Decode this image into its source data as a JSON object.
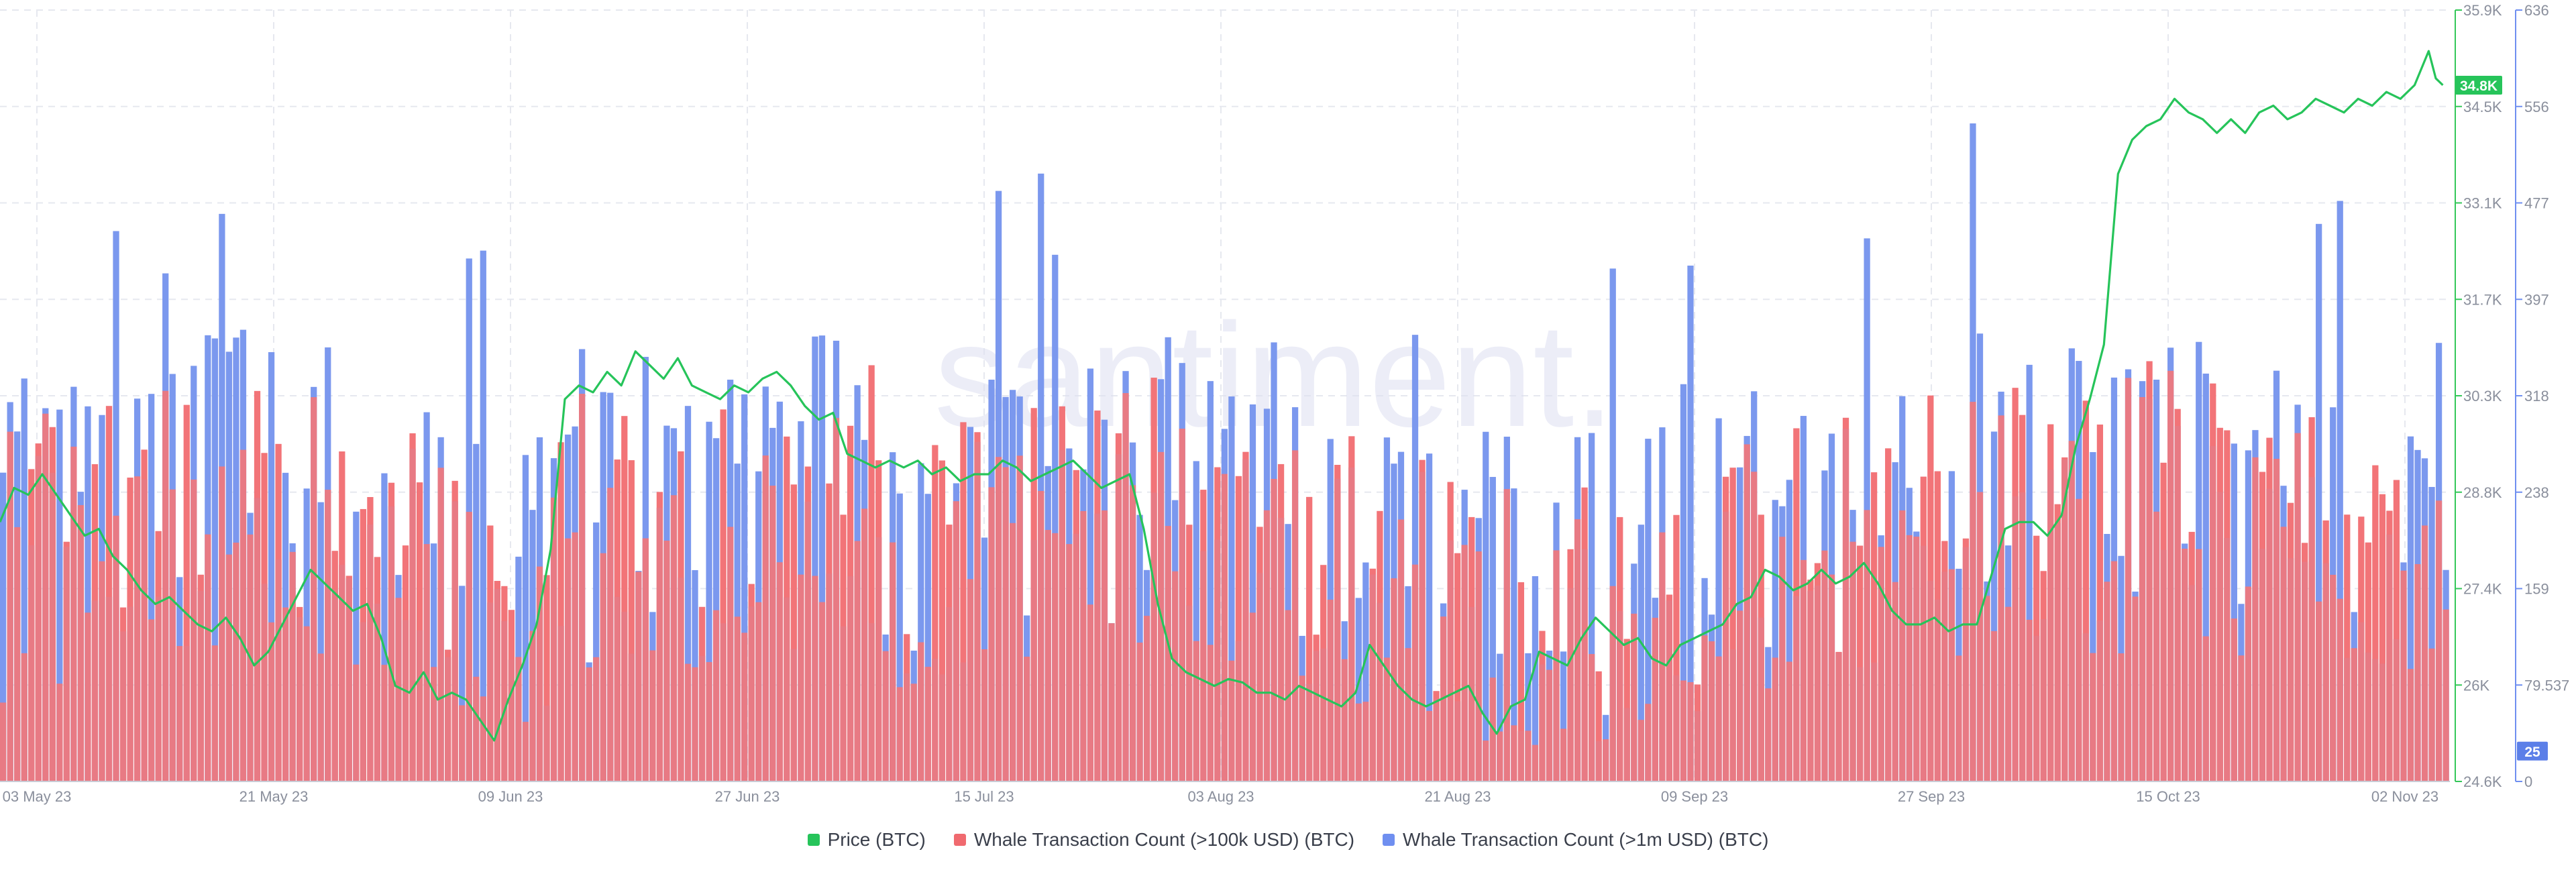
{
  "watermark": "santiment.",
  "chart_data": {
    "type": "bar",
    "x_ticks": [
      "03 May 23",
      "21 May 23",
      "09 Jun 23",
      "27 Jun 23",
      "15 Jul 23",
      "03 Aug 23",
      "21 Aug 23",
      "09 Sep 23",
      "27 Sep 23",
      "15 Oct 23",
      "02 Nov 23"
    ],
    "y_price_ticks": [
      "24.6K",
      "26K",
      "27.4K",
      "28.8K",
      "30.3K",
      "31.7K",
      "33.1K",
      "34.5K",
      "35.9K"
    ],
    "y_count_ticks": [
      "0",
      "79.537",
      "159",
      "238",
      "318",
      "397",
      "477",
      "556",
      "636"
    ],
    "price_ylim": [
      24600,
      35900
    ],
    "count_ylim": [
      0,
      636
    ],
    "last_price_label": "34.8K",
    "last_count_label": "25",
    "grid": true,
    "legend_position": "bottom-center",
    "series": [
      {
        "name": "Price (BTC)",
        "color": "#26c45a",
        "type": "line",
        "points": [
          [
            0,
            28400
          ],
          [
            2,
            28900
          ],
          [
            4,
            28800
          ],
          [
            6,
            29100
          ],
          [
            8,
            28800
          ],
          [
            10,
            28500
          ],
          [
            12,
            28200
          ],
          [
            14,
            28300
          ],
          [
            16,
            27900
          ],
          [
            18,
            27700
          ],
          [
            20,
            27400
          ],
          [
            22,
            27200
          ],
          [
            24,
            27300
          ],
          [
            26,
            27100
          ],
          [
            28,
            26900
          ],
          [
            30,
            26800
          ],
          [
            32,
            27000
          ],
          [
            34,
            26700
          ],
          [
            36,
            26300
          ],
          [
            38,
            26500
          ],
          [
            40,
            26900
          ],
          [
            42,
            27300
          ],
          [
            44,
            27700
          ],
          [
            46,
            27500
          ],
          [
            48,
            27300
          ],
          [
            50,
            27100
          ],
          [
            52,
            27200
          ],
          [
            54,
            26700
          ],
          [
            56,
            26000
          ],
          [
            58,
            25900
          ],
          [
            60,
            26200
          ],
          [
            62,
            25800
          ],
          [
            64,
            25900
          ],
          [
            66,
            25800
          ],
          [
            68,
            25500
          ],
          [
            70,
            25200
          ],
          [
            72,
            25800
          ],
          [
            74,
            26300
          ],
          [
            76,
            26900
          ],
          [
            78,
            28000
          ],
          [
            80,
            30200
          ],
          [
            82,
            30400
          ],
          [
            84,
            30300
          ],
          [
            86,
            30600
          ],
          [
            88,
            30400
          ],
          [
            90,
            30900
          ],
          [
            92,
            30700
          ],
          [
            94,
            30500
          ],
          [
            96,
            30800
          ],
          [
            98,
            30400
          ],
          [
            100,
            30300
          ],
          [
            102,
            30200
          ],
          [
            104,
            30400
          ],
          [
            106,
            30300
          ],
          [
            108,
            30500
          ],
          [
            110,
            30600
          ],
          [
            112,
            30400
          ],
          [
            114,
            30100
          ],
          [
            116,
            29900
          ],
          [
            118,
            30000
          ],
          [
            120,
            29400
          ],
          [
            122,
            29300
          ],
          [
            124,
            29200
          ],
          [
            126,
            29300
          ],
          [
            128,
            29200
          ],
          [
            130,
            29300
          ],
          [
            132,
            29100
          ],
          [
            134,
            29200
          ],
          [
            136,
            29000
          ],
          [
            138,
            29100
          ],
          [
            140,
            29100
          ],
          [
            142,
            29300
          ],
          [
            144,
            29200
          ],
          [
            146,
            29000
          ],
          [
            148,
            29100
          ],
          [
            150,
            29200
          ],
          [
            152,
            29300
          ],
          [
            154,
            29100
          ],
          [
            156,
            28900
          ],
          [
            158,
            29000
          ],
          [
            160,
            29100
          ],
          [
            162,
            28300
          ],
          [
            164,
            27200
          ],
          [
            166,
            26400
          ],
          [
            168,
            26200
          ],
          [
            170,
            26100
          ],
          [
            172,
            26000
          ],
          [
            174,
            26100
          ],
          [
            176,
            26050
          ],
          [
            178,
            25900
          ],
          [
            180,
            25900
          ],
          [
            182,
            25800
          ],
          [
            184,
            26000
          ],
          [
            186,
            25900
          ],
          [
            188,
            25800
          ],
          [
            190,
            25700
          ],
          [
            192,
            25900
          ],
          [
            194,
            26600
          ],
          [
            196,
            26300
          ],
          [
            198,
            26000
          ],
          [
            200,
            25800
          ],
          [
            202,
            25700
          ],
          [
            204,
            25800
          ],
          [
            206,
            25900
          ],
          [
            208,
            26000
          ],
          [
            210,
            25600
          ],
          [
            212,
            25300
          ],
          [
            214,
            25700
          ],
          [
            216,
            25800
          ],
          [
            218,
            26500
          ],
          [
            220,
            26400
          ],
          [
            222,
            26300
          ],
          [
            224,
            26700
          ],
          [
            226,
            27000
          ],
          [
            228,
            26800
          ],
          [
            230,
            26600
          ],
          [
            232,
            26700
          ],
          [
            234,
            26400
          ],
          [
            236,
            26300
          ],
          [
            238,
            26600
          ],
          [
            240,
            26700
          ],
          [
            242,
            26800
          ],
          [
            244,
            26900
          ],
          [
            246,
            27200
          ],
          [
            248,
            27300
          ],
          [
            250,
            27700
          ],
          [
            252,
            27600
          ],
          [
            254,
            27400
          ],
          [
            256,
            27500
          ],
          [
            258,
            27700
          ],
          [
            260,
            27500
          ],
          [
            262,
            27600
          ],
          [
            264,
            27800
          ],
          [
            266,
            27500
          ],
          [
            268,
            27100
          ],
          [
            270,
            26900
          ],
          [
            272,
            26900
          ],
          [
            274,
            27000
          ],
          [
            276,
            26800
          ],
          [
            278,
            26900
          ],
          [
            280,
            26900
          ],
          [
            282,
            27600
          ],
          [
            284,
            28300
          ],
          [
            286,
            28400
          ],
          [
            288,
            28400
          ],
          [
            290,
            28200
          ],
          [
            292,
            28500
          ],
          [
            294,
            29500
          ],
          [
            296,
            30200
          ],
          [
            298,
            31000
          ],
          [
            300,
            33500
          ],
          [
            302,
            34000
          ],
          [
            304,
            34200
          ],
          [
            306,
            34300
          ],
          [
            308,
            34600
          ],
          [
            310,
            34400
          ],
          [
            312,
            34300
          ],
          [
            314,
            34100
          ],
          [
            316,
            34300
          ],
          [
            318,
            34100
          ],
          [
            320,
            34400
          ],
          [
            322,
            34500
          ],
          [
            324,
            34300
          ],
          [
            326,
            34400
          ],
          [
            328,
            34600
          ],
          [
            330,
            34500
          ],
          [
            332,
            34400
          ],
          [
            334,
            34600
          ],
          [
            336,
            34500
          ],
          [
            338,
            34700
          ],
          [
            340,
            34600
          ],
          [
            342,
            34800
          ],
          [
            344,
            35300
          ],
          [
            345,
            34900
          ],
          [
            346,
            34800
          ]
        ]
      },
      {
        "name": "Whale Transaction Count (>100k USD) (BTC)",
        "color": "#f06a6f",
        "type": "bar"
      },
      {
        "name": "Whale Transaction Count (>1m USD) (BTC)",
        "color": "#6f8ff0",
        "type": "bar"
      }
    ]
  }
}
